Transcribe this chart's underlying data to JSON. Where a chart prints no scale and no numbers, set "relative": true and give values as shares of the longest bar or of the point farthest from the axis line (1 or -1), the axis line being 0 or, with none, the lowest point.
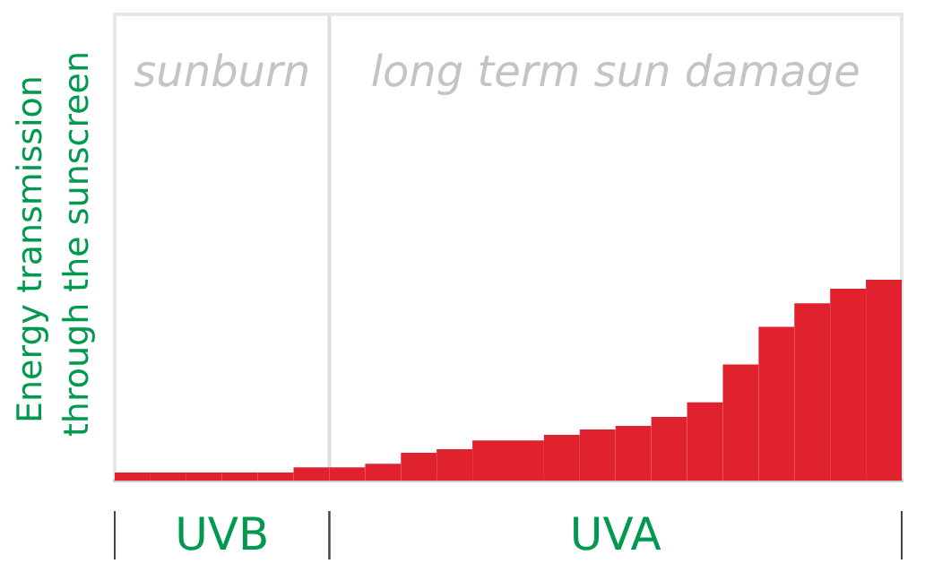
{
  "chart_data": {
    "type": "bar",
    "relative": true,
    "ylabel": "Energy transmission through the sunscreen",
    "categories": [
      null,
      null,
      null,
      null,
      null,
      null,
      null,
      null,
      null,
      null,
      null,
      null,
      null,
      null,
      null,
      null,
      null,
      null,
      null,
      null,
      null,
      null
    ],
    "values": [
      0.04,
      0.04,
      0.04,
      0.04,
      0.04,
      0.066,
      0.066,
      0.084,
      0.138,
      0.156,
      0.2,
      0.2,
      0.228,
      0.254,
      0.272,
      0.317,
      0.389,
      0.578,
      0.766,
      0.883,
      0.955,
      1
    ],
    "color": "#e0222f",
    "annotations": [
      "sunburn",
      "long term sun damage",
      "UVB",
      "UVA"
    ],
    "grid": false
  }
}
